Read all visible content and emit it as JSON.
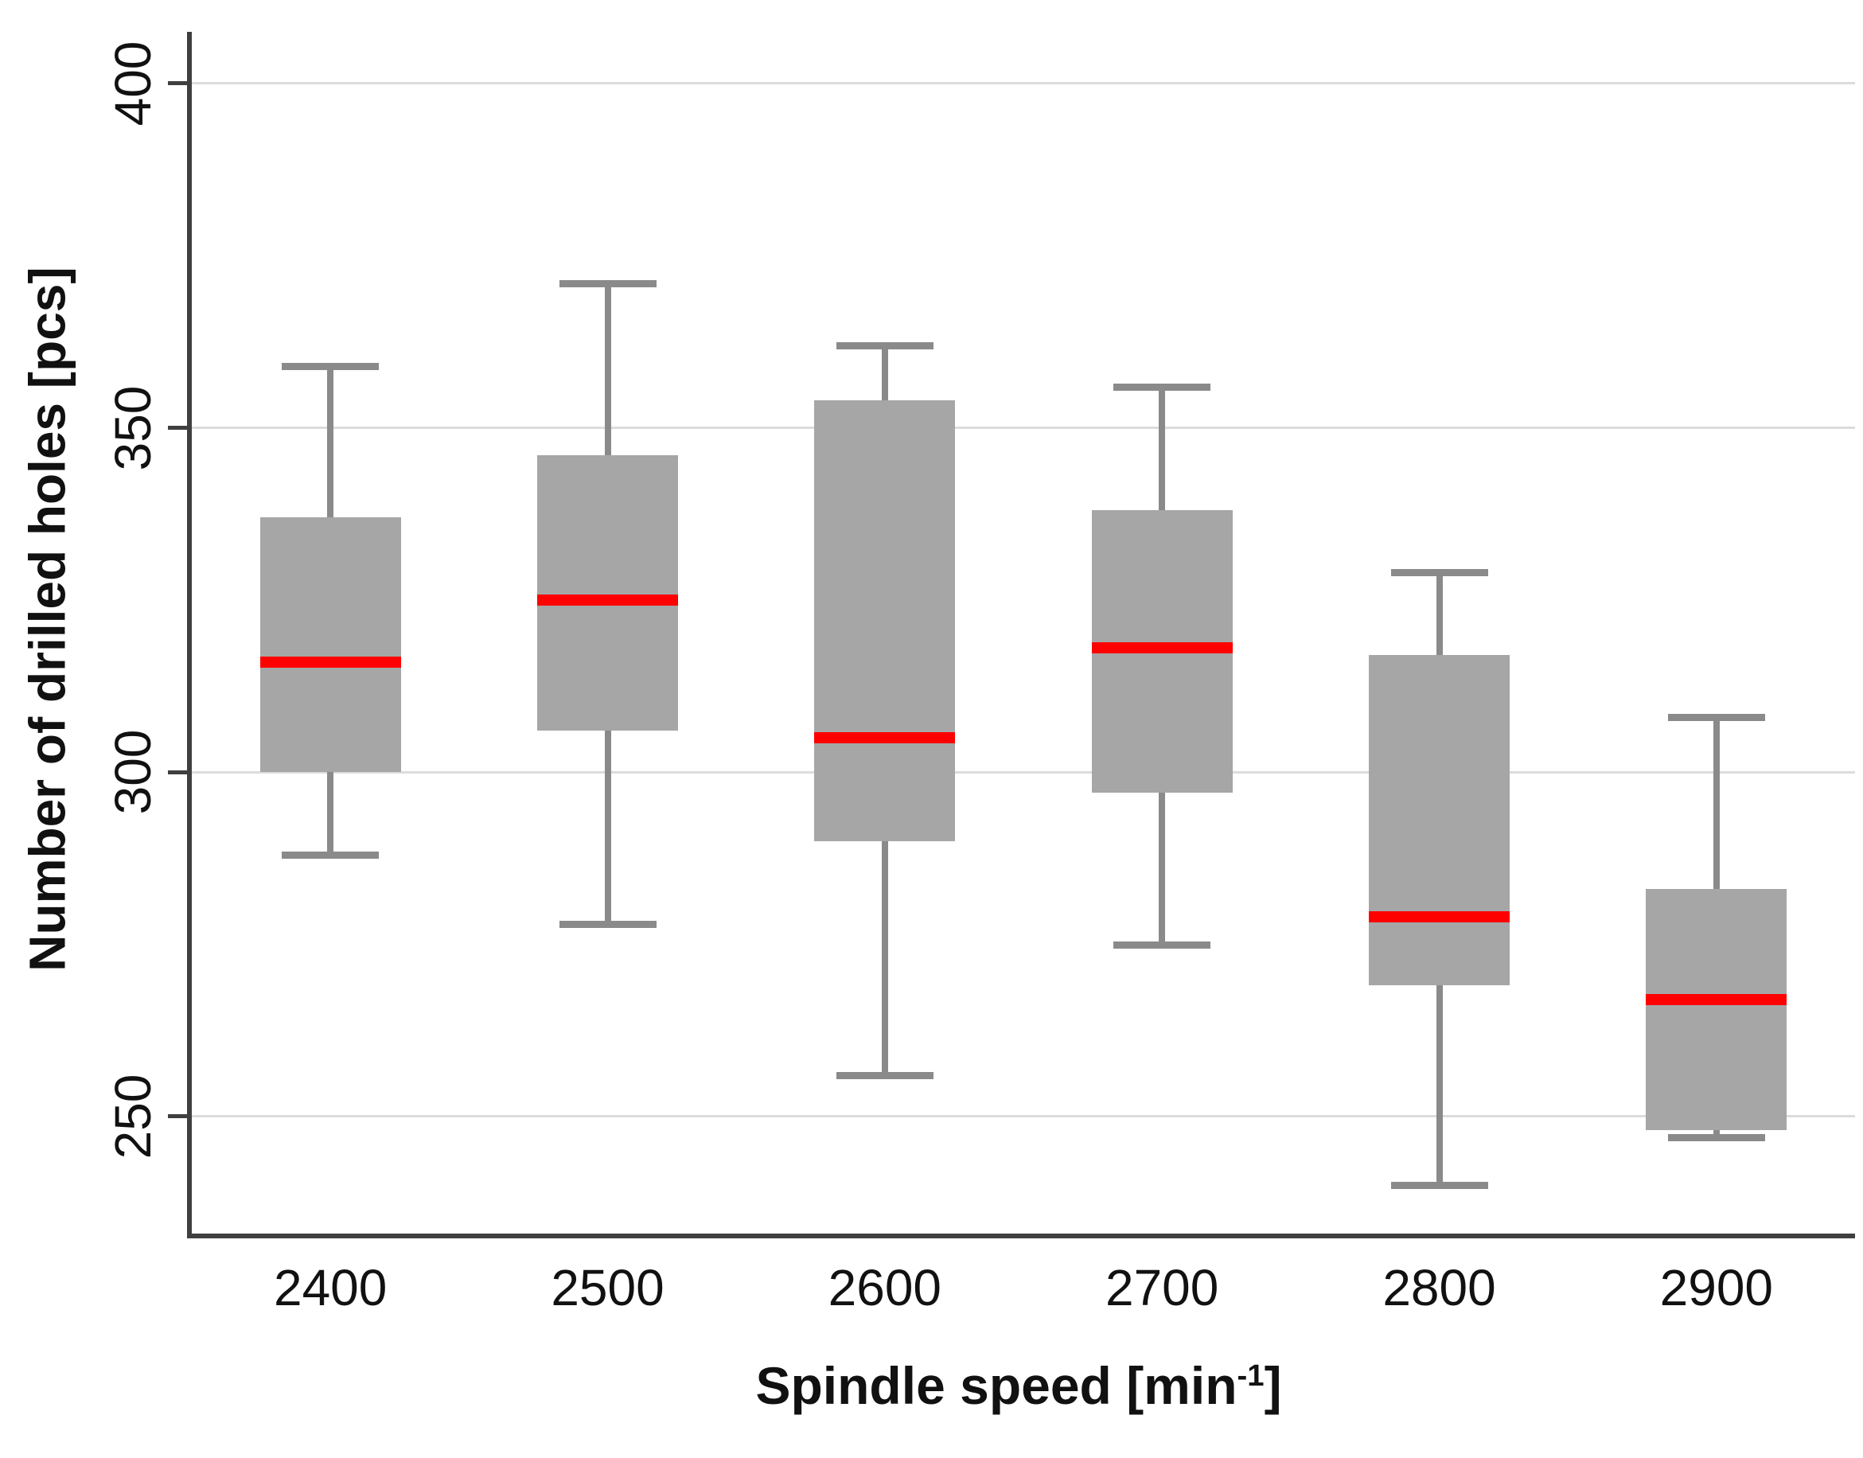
{
  "chart_data": {
    "type": "boxplot",
    "xlabel": {
      "prefix": "Spindle speed [min",
      "sup": "-1",
      "suffix": "]"
    },
    "ylabel": "Number of drilled holes [pcs]",
    "categories": [
      "2400",
      "2500",
      "2600",
      "2700",
      "2800",
      "2900"
    ],
    "series": [
      {
        "category": "2400",
        "whisker_low": 288,
        "q1": 300,
        "median": 316,
        "q3": 337,
        "whisker_high": 359
      },
      {
        "category": "2500",
        "whisker_low": 278,
        "q1": 306,
        "median": 325,
        "q3": 346,
        "whisker_high": 371
      },
      {
        "category": "2600",
        "whisker_low": 256,
        "q1": 290,
        "median": 305,
        "q3": 354,
        "whisker_high": 362
      },
      {
        "category": "2700",
        "whisker_low": 275,
        "q1": 297,
        "median": 318,
        "q3": 338,
        "whisker_high": 356
      },
      {
        "category": "2800",
        "whisker_low": 240,
        "q1": 269,
        "median": 279,
        "q3": 317,
        "whisker_high": 329
      },
      {
        "category": "2900",
        "whisker_low": 247,
        "q1": 248,
        "median": 267,
        "q3": 283,
        "whisker_high": 308
      }
    ],
    "yticks": [
      250,
      300,
      350,
      400
    ],
    "ylim": [
      233,
      407.5
    ],
    "grid": "horizontal",
    "legend": "none",
    "colors": {
      "box_fill": "#a6a6a6",
      "whisker": "#8a8a8a",
      "median": "#ff0000",
      "gridline": "#dcdcdc",
      "axis": "#3f3f3f",
      "text": "#111111"
    }
  }
}
